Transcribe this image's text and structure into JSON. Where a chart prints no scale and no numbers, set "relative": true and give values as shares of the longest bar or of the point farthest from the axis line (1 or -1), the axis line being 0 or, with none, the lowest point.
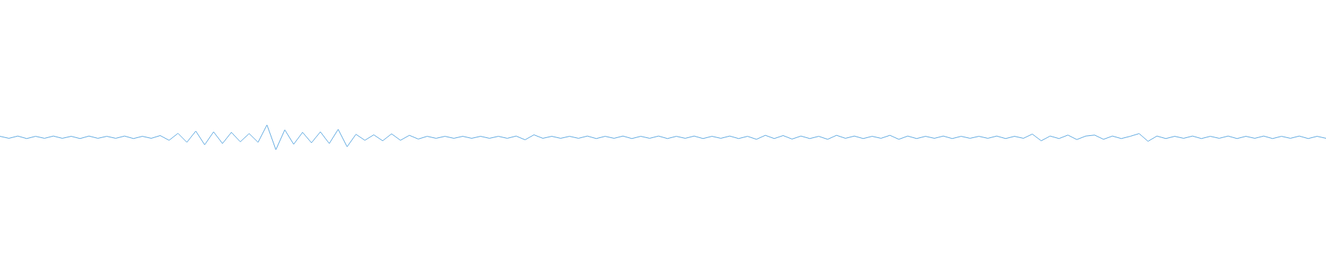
{
  "chart_data": {
    "type": "line",
    "relative": true,
    "categories": [
      null,
      null,
      null,
      null,
      null,
      null,
      null,
      null,
      null,
      null,
      null,
      null,
      null,
      null,
      null,
      null,
      null,
      null,
      null,
      null,
      null,
      null,
      null,
      null,
      null,
      null,
      null,
      null,
      null,
      null,
      null,
      null,
      null,
      null,
      null,
      null,
      null,
      null,
      null,
      null,
      null,
      null,
      null,
      null,
      null,
      null,
      null,
      null,
      null,
      null,
      null,
      null,
      null,
      null,
      null,
      null,
      null,
      null,
      null,
      null,
      null,
      null,
      null,
      null,
      null,
      null,
      null,
      null,
      null,
      null,
      null,
      null,
      null,
      null,
      null,
      null,
      null,
      null,
      null,
      null,
      null,
      null,
      null,
      null,
      null,
      null,
      null,
      null,
      null,
      null,
      null,
      null,
      null,
      null,
      null,
      null,
      null,
      null,
      null,
      null,
      null,
      null,
      null,
      null,
      null,
      null,
      null,
      null,
      null,
      null,
      null,
      null,
      null,
      null,
      null,
      null,
      null,
      null,
      null,
      null,
      null,
      null,
      null,
      null,
      null,
      null,
      null,
      null,
      null,
      null,
      null,
      null,
      null,
      null,
      null,
      null,
      null,
      null,
      null,
      null,
      null,
      null,
      null,
      null,
      null,
      null,
      null,
      null,
      null,
      null
    ],
    "series": [
      {
        "color": "#5ba7e0",
        "values": [
          0.54,
          0.46,
          0.55,
          0.45,
          0.54,
          0.46,
          0.55,
          0.46,
          0.54,
          0.45,
          0.55,
          0.46,
          0.54,
          0.46,
          0.55,
          0.45,
          0.54,
          0.46,
          0.57,
          0.38,
          0.66,
          0.3,
          0.75,
          0.2,
          0.72,
          0.25,
          0.7,
          0.32,
          0.65,
          0.3,
          1,
          0,
          0.8,
          0.22,
          0.7,
          0.28,
          0.72,
          0.25,
          0.82,
          0.12,
          0.62,
          0.38,
          0.6,
          0.36,
          0.64,
          0.38,
          0.58,
          0.43,
          0.54,
          0.46,
          0.54,
          0.46,
          0.54,
          0.46,
          0.54,
          0.46,
          0.54,
          0.46,
          0.55,
          0.4,
          0.6,
          0.46,
          0.54,
          0.46,
          0.54,
          0.46,
          0.55,
          0.45,
          0.54,
          0.46,
          0.55,
          0.45,
          0.54,
          0.46,
          0.55,
          0.45,
          0.54,
          0.46,
          0.55,
          0.45,
          0.54,
          0.46,
          0.55,
          0.45,
          0.54,
          0.42,
          0.58,
          0.45,
          0.57,
          0.43,
          0.55,
          0.45,
          0.54,
          0.42,
          0.58,
          0.46,
          0.55,
          0.45,
          0.54,
          0.46,
          0.58,
          0.42,
          0.55,
          0.45,
          0.54,
          0.46,
          0.55,
          0.45,
          0.54,
          0.46,
          0.54,
          0.46,
          0.55,
          0.45,
          0.54,
          0.46,
          0.63,
          0.36,
          0.55,
          0.45,
          0.59,
          0.41,
          0.55,
          0.59,
          0.42,
          0.55,
          0.45,
          0.54,
          0.65,
          0.34,
          0.55,
          0.45,
          0.54,
          0.46,
          0.55,
          0.45,
          0.54,
          0.46,
          0.55,
          0.45,
          0.54,
          0.46,
          0.55,
          0.45,
          0.54,
          0.46,
          0.55,
          0.45,
          0.54,
          0.46
        ]
      }
    ]
  }
}
